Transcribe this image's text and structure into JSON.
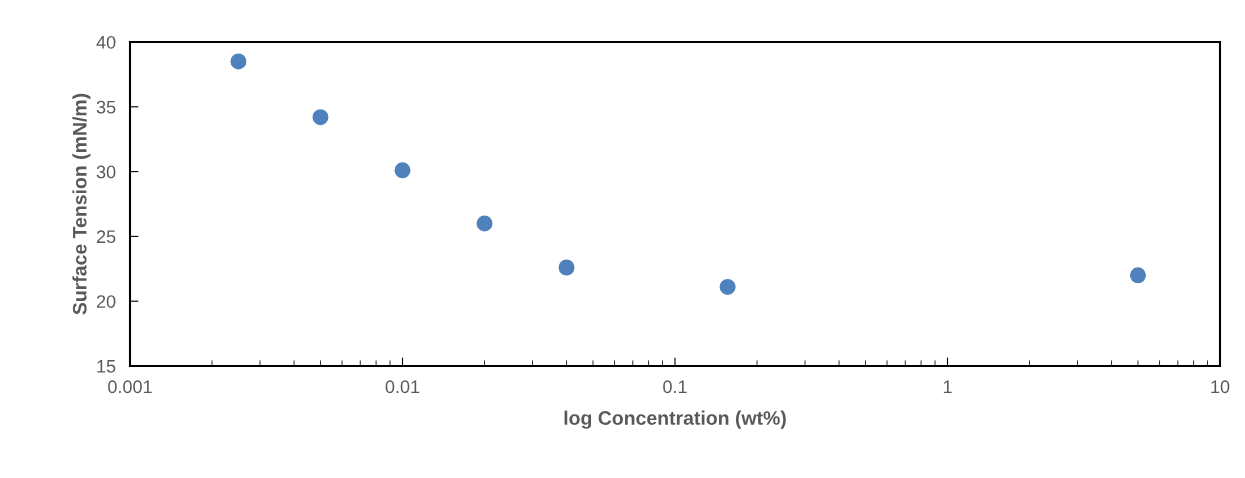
{
  "chart_data": {
    "type": "scatter",
    "xlabel": "log Concentration (wt%)",
    "ylabel": "Surface Tension (mN/m)",
    "x": [
      0.0025,
      0.005,
      0.01,
      0.02,
      0.04,
      0.156,
      5
    ],
    "series": [
      {
        "color": "#4f81bd",
        "values": [
          38.5,
          34.2,
          30.1,
          26.0,
          22.6,
          21.1,
          22.0
        ]
      }
    ],
    "log": "x",
    "xlim": [
      0.001,
      10
    ],
    "xticks": [
      0.001,
      0.01,
      0.1,
      1,
      10
    ],
    "ylim": [
      15,
      40
    ],
    "yticks": [
      15,
      20,
      25,
      30,
      35,
      40
    ],
    "grid": false,
    "legend": false,
    "marker": "circle"
  }
}
